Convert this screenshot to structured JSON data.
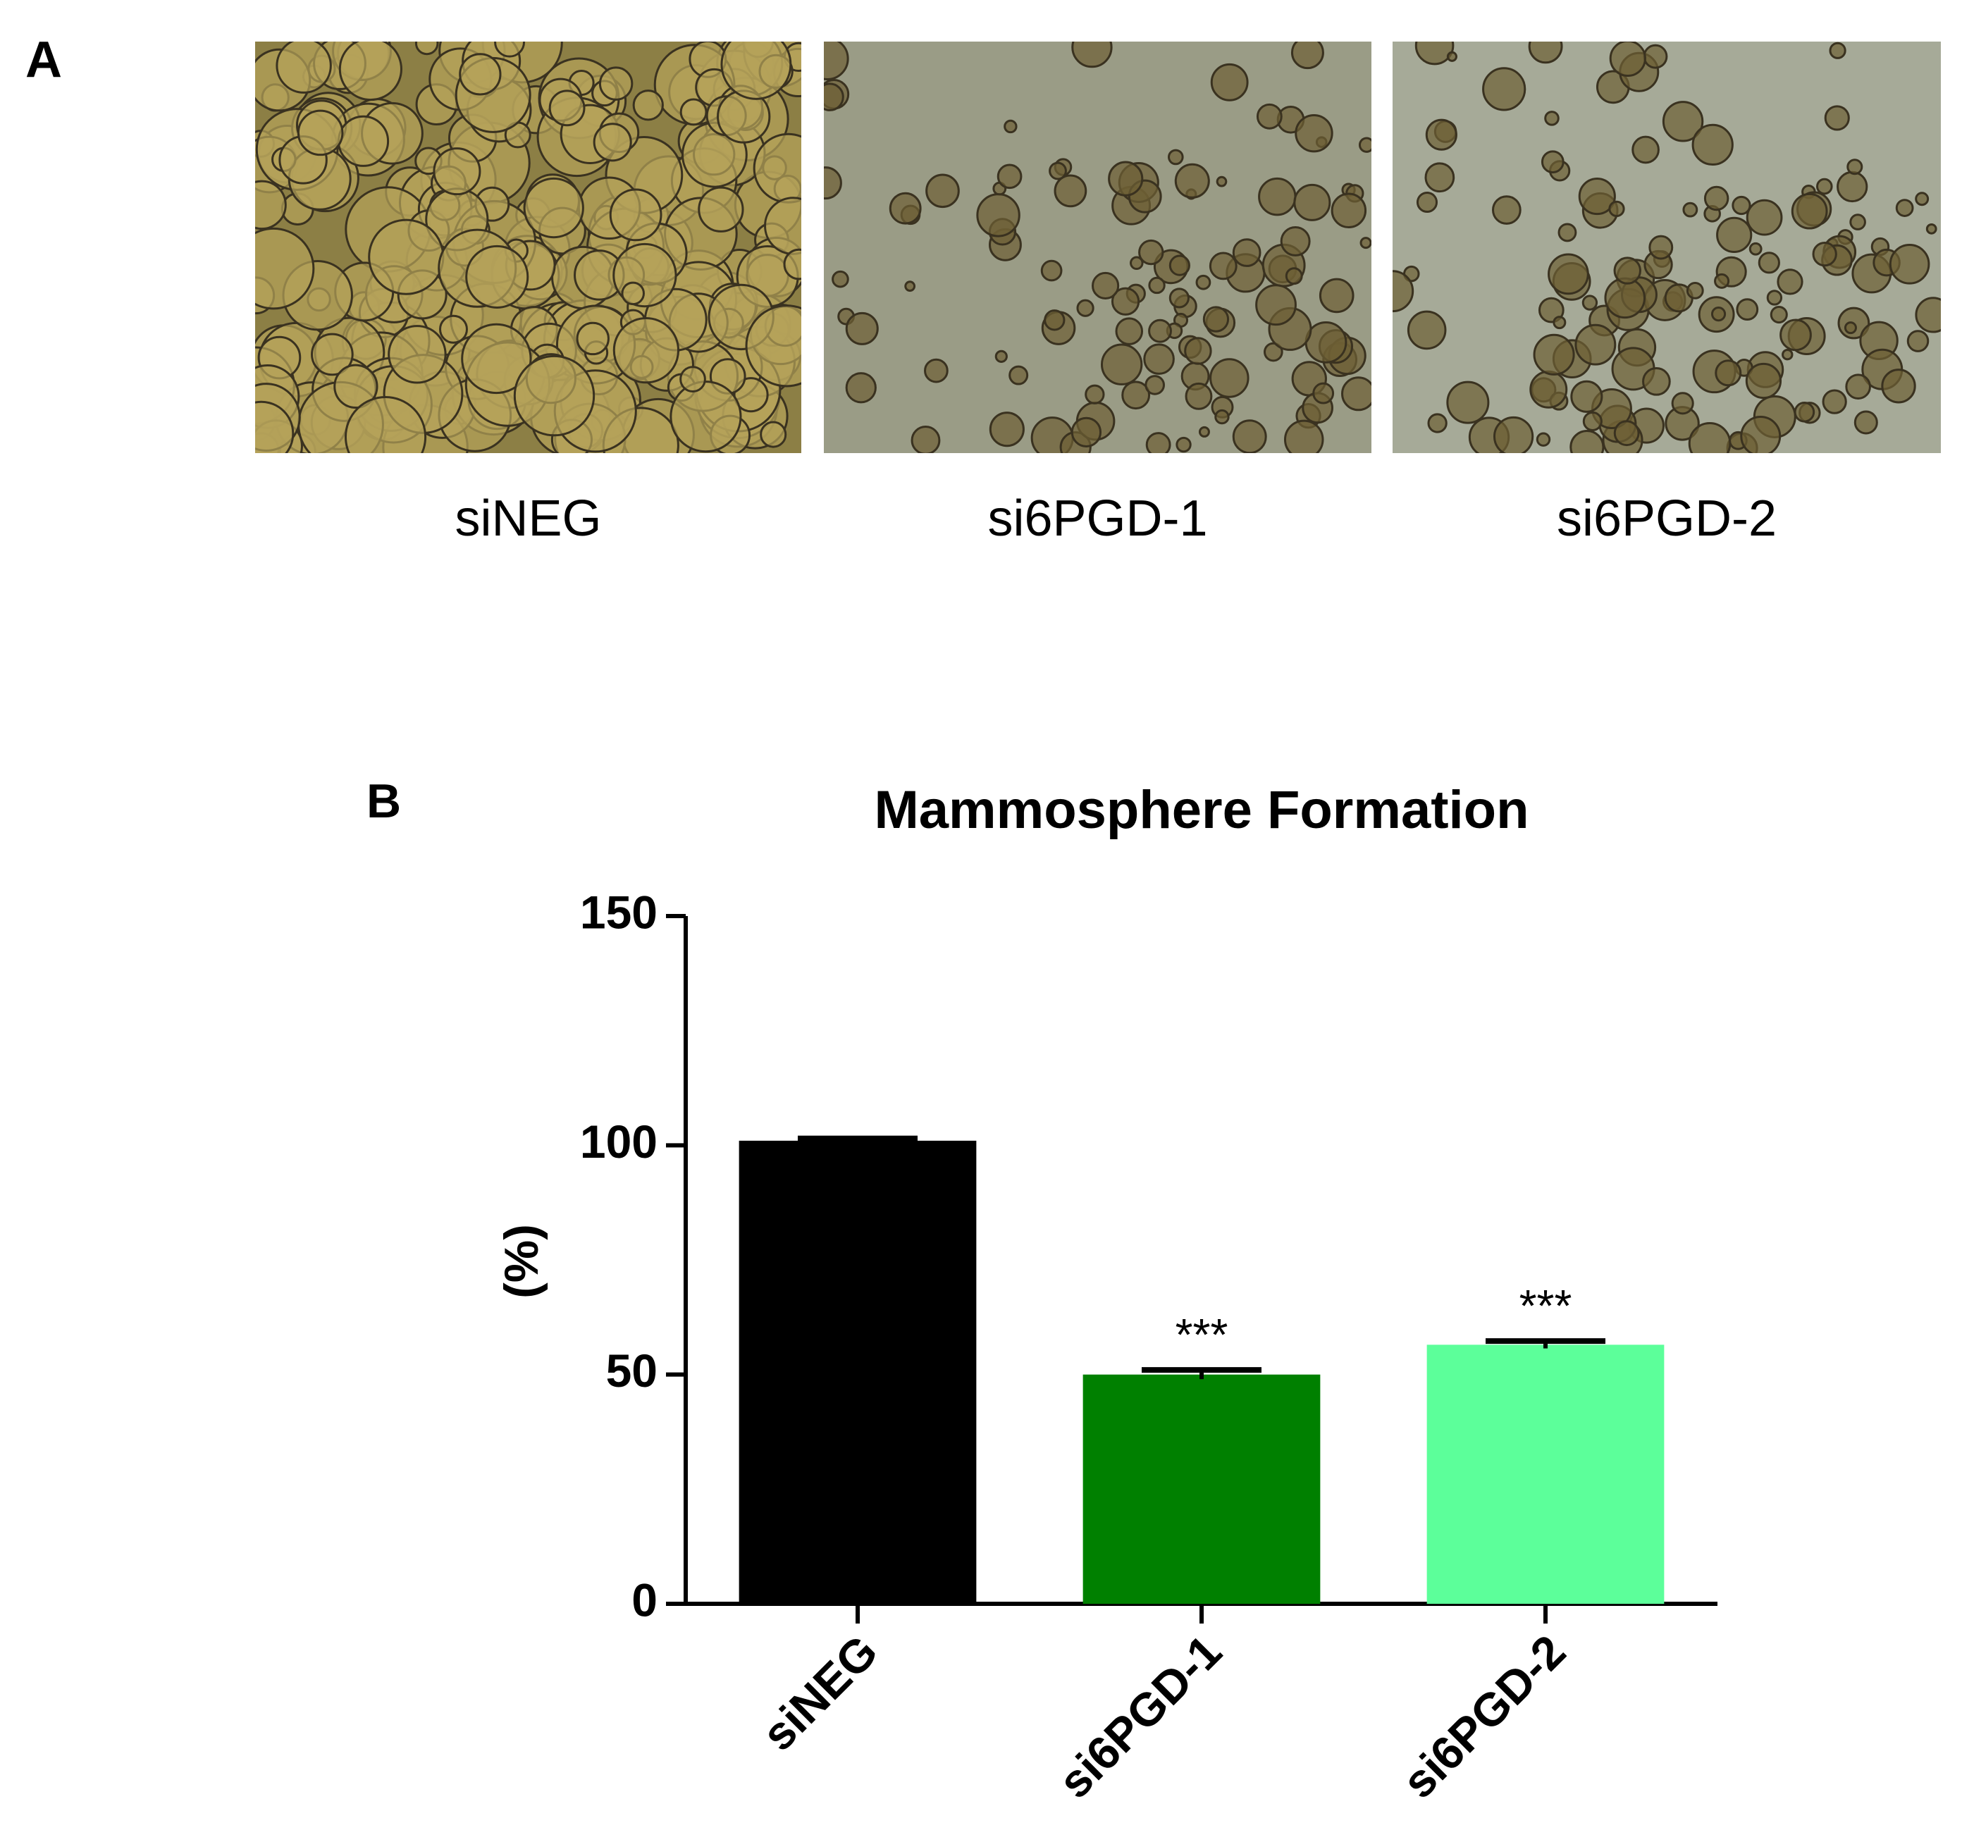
{
  "panel_a": {
    "label": "A",
    "images": [
      {
        "label": "siNEG"
      },
      {
        "label": "si6PGD-1"
      },
      {
        "label": "si6PGD-2"
      }
    ]
  },
  "chart_data": {
    "type": "bar",
    "panel_label": "B",
    "title": "Mammosphere Formation",
    "y_label": "(%)",
    "categories": [
      "siNEG",
      "si6PGD-1",
      "si6PGD-2"
    ],
    "values": [
      101,
      50,
      56.5
    ],
    "errors": [
      0.5,
      1,
      0.8
    ],
    "colors": [
      "#000000",
      "#008000",
      "#5cff9a"
    ],
    "significance": [
      null,
      "***",
      "***"
    ],
    "ylim": [
      0,
      150
    ],
    "yticks": [
      0,
      50,
      100,
      150
    ],
    "grid": false
  }
}
